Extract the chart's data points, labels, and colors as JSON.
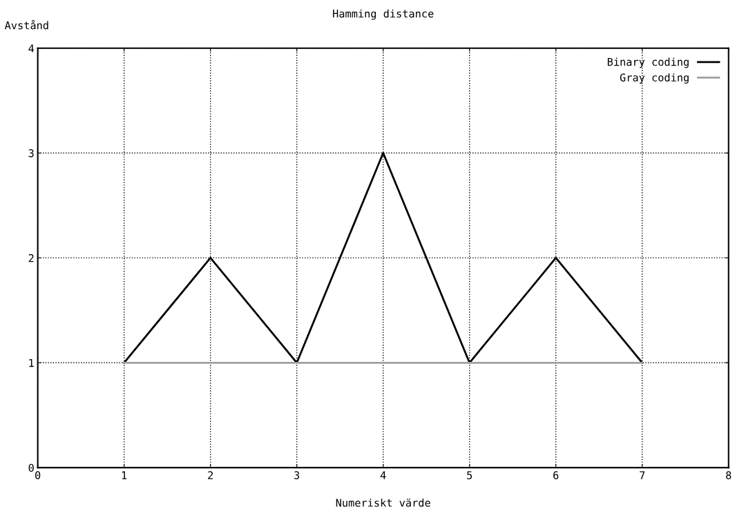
{
  "chart_data": {
    "type": "line",
    "title": "Hamming distance",
    "xlabel": "Numeriskt värde",
    "ylabel": "Avstånd",
    "x": [
      1,
      2,
      3,
      4,
      5,
      6,
      7
    ],
    "series": [
      {
        "name": "Binary coding",
        "color": "#000000",
        "values": [
          1,
          2,
          1,
          3,
          1,
          2,
          1
        ]
      },
      {
        "name": "Gray coding",
        "color": "#a0a0a0",
        "values": [
          1,
          1,
          1,
          1,
          1,
          1,
          1
        ]
      }
    ],
    "xlim": [
      0,
      8
    ],
    "xticks": [
      0,
      1,
      2,
      3,
      4,
      5,
      6,
      7,
      8
    ],
    "ylim": [
      0,
      4
    ],
    "yticks": [
      0,
      1,
      2,
      3,
      4
    ],
    "grid": true,
    "legend": "top right",
    "marker": "none",
    "line_style": "solid"
  }
}
